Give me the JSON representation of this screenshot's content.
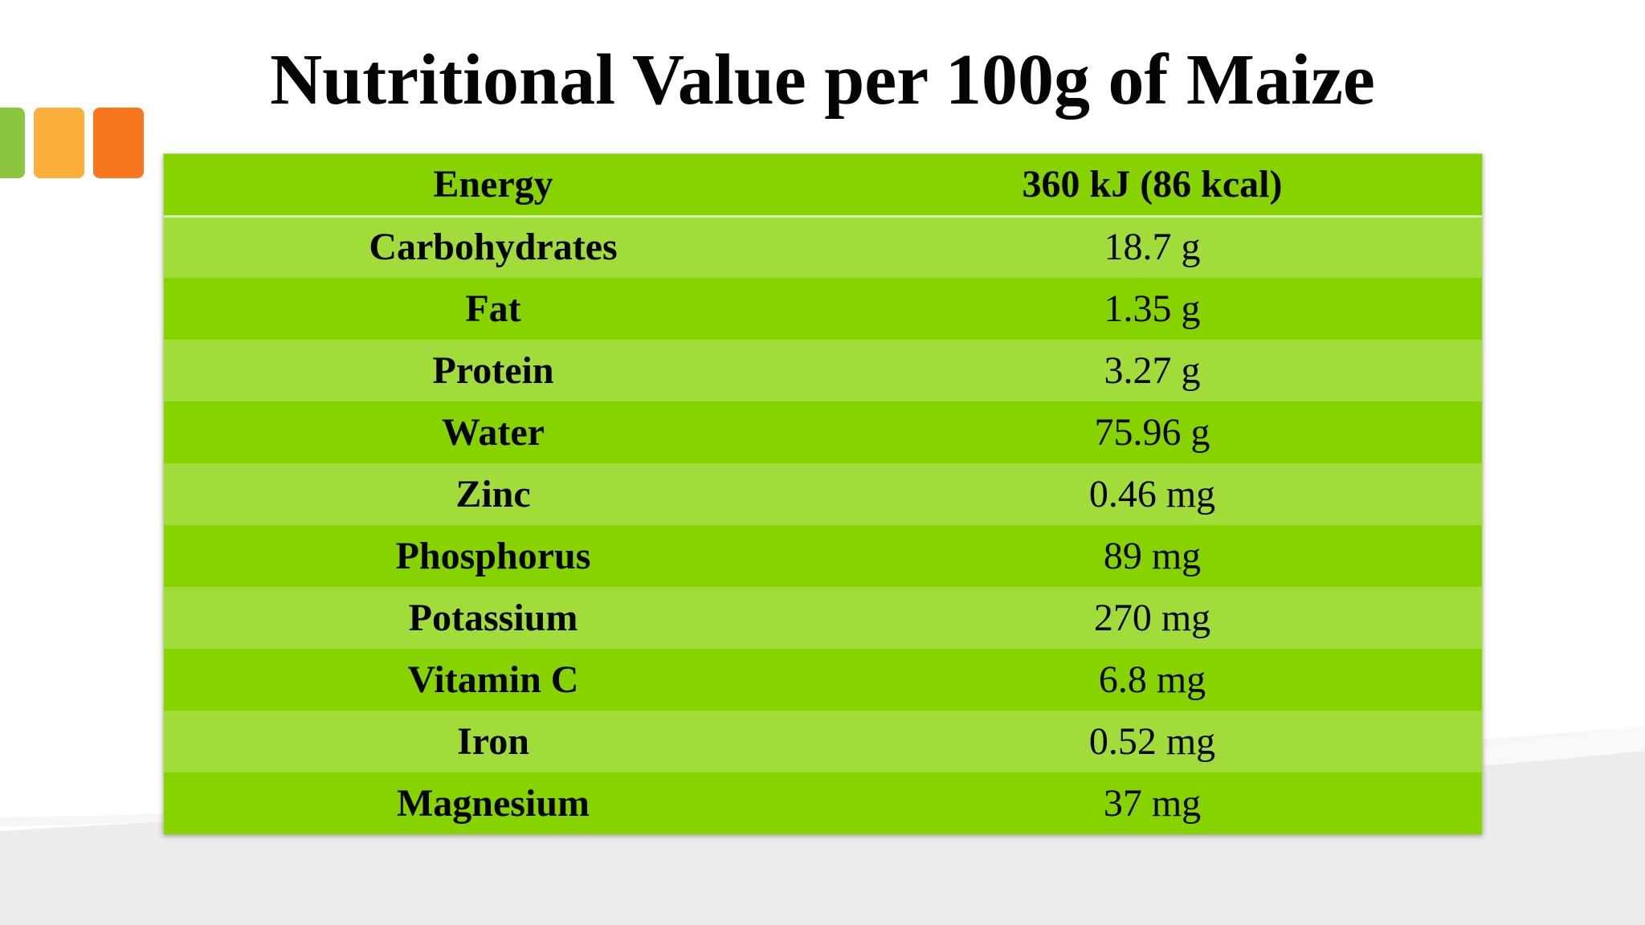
{
  "slide": {
    "title": "Nutritional Value per 100g of Maize"
  },
  "colors": {
    "row_dark": "#87d300",
    "row_light": "#a1dc3a",
    "square_green": "#8cc63f",
    "square_yellow": "#fbb03b",
    "square_orange": "#f7761e"
  },
  "table": {
    "rows": [
      {
        "nutrient": "Energy",
        "value": "360 kJ (86 kcal)"
      },
      {
        "nutrient": "Carbohydrates",
        "value": "18.7 g"
      },
      {
        "nutrient": "Fat",
        "value": "1.35 g"
      },
      {
        "nutrient": "Protein",
        "value": "3.27 g"
      },
      {
        "nutrient": "Water",
        "value": "75.96 g"
      },
      {
        "nutrient": "Zinc",
        "value": "0.46 mg"
      },
      {
        "nutrient": "Phosphorus",
        "value": "89 mg"
      },
      {
        "nutrient": "Potassium",
        "value": "270 mg"
      },
      {
        "nutrient": "Vitamin C",
        "value": "6.8 mg"
      },
      {
        "nutrient": "Iron",
        "value": "0.52 mg"
      },
      {
        "nutrient": "Magnesium",
        "value": "37 mg"
      }
    ]
  }
}
